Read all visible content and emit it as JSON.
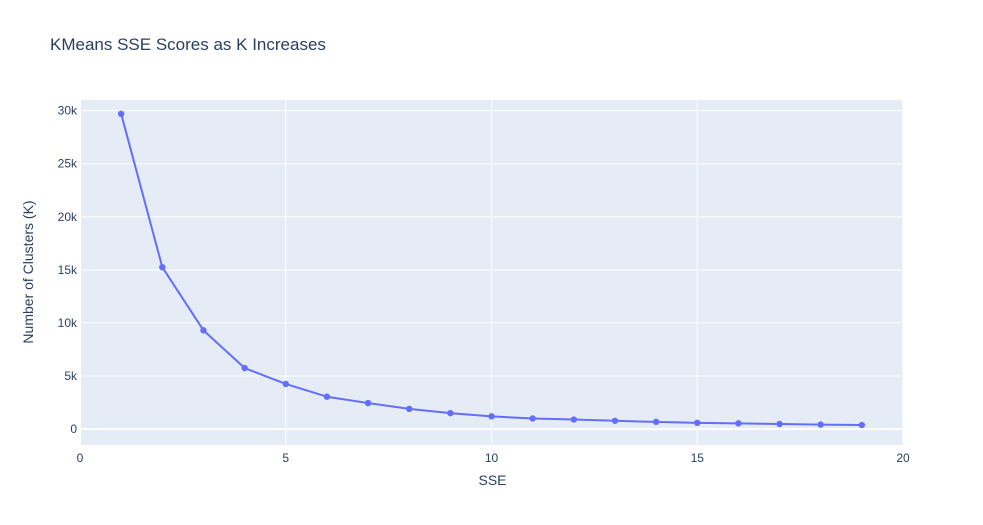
{
  "chart_data": {
    "type": "line",
    "title": "KMeans SSE Scores as K Increases",
    "xlabel": "SSE",
    "ylabel": "Number of Clusters (K)",
    "xlim": [
      0,
      20
    ],
    "ylim": [
      -1500,
      31000
    ],
    "x_ticks": [
      0,
      5,
      10,
      15,
      20
    ],
    "x_tick_labels": [
      "0",
      "5",
      "10",
      "15",
      "20"
    ],
    "y_ticks": [
      0,
      5000,
      10000,
      15000,
      20000,
      25000,
      30000
    ],
    "y_tick_labels": [
      "0",
      "5k",
      "10k",
      "15k",
      "20k",
      "25k",
      "30k"
    ],
    "grid": true,
    "legend": "none",
    "series": [
      {
        "x": [
          1,
          2,
          3,
          4,
          5,
          6,
          7,
          8,
          9,
          10,
          11,
          12,
          13,
          14,
          15,
          16,
          17,
          18,
          19
        ],
        "y": [
          29700,
          15250,
          9300,
          5750,
          4250,
          3050,
          2450,
          1900,
          1500,
          1200,
          1000,
          900,
          780,
          680,
          590,
          540,
          480,
          420,
          380
        ],
        "color": "#636efa"
      }
    ]
  },
  "colors": {
    "plot_bg": "#e5ecf6",
    "grid": "#ffffff",
    "text": "#2a3f5f",
    "series": "#636efa"
  }
}
